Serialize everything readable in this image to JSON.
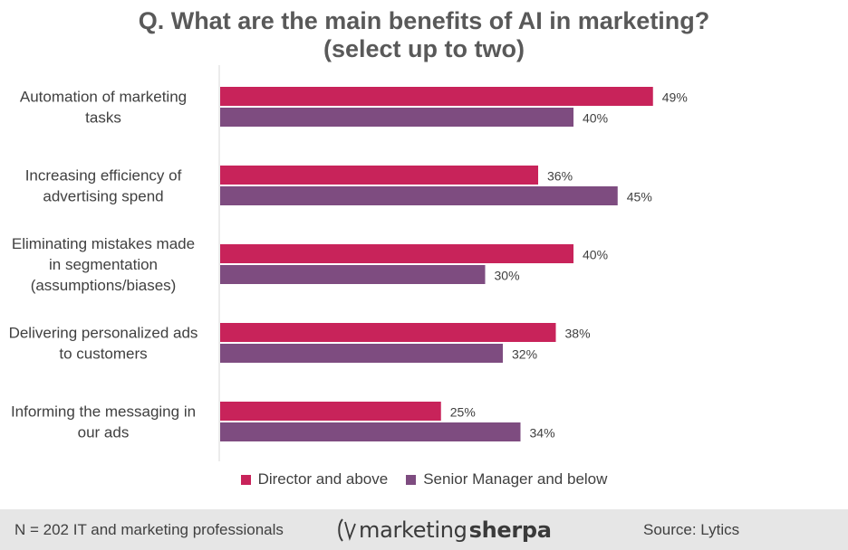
{
  "chart_data": {
    "type": "bar",
    "orientation": "horizontal",
    "title": [
      "Q. What are the main benefits of AI in marketing?",
      "(select up to two)"
    ],
    "categories": [
      [
        "Automation of marketing",
        "tasks"
      ],
      [
        "Increasing efficiency of",
        "advertising spend"
      ],
      [
        "Eliminating mistakes made",
        "in segmentation",
        "(assumptions/biases)"
      ],
      [
        "Delivering personalized ads",
        "to customers"
      ],
      [
        "Informing the messaging in",
        "our ads"
      ]
    ],
    "series": [
      {
        "name": "Director and above",
        "values": [
          49,
          36,
          40,
          38,
          25
        ],
        "color": "#c8235a"
      },
      {
        "name": "Senior Manager and below",
        "values": [
          40,
          45,
          30,
          32,
          34
        ],
        "color": "#7e4c80"
      }
    ],
    "value_suffix": "%",
    "xlim": [
      0,
      100
    ],
    "grid": false,
    "legend_position": "bottom"
  },
  "footer": {
    "note": "N = 202 IT and marketing professionals",
    "logo_thin": "marketing",
    "logo_bold": "sherpa",
    "source": "Source: Lytics"
  },
  "colors": {
    "footer_bg": "#e6e6e6",
    "axis": "#d9d9d9",
    "text": "#404040"
  }
}
